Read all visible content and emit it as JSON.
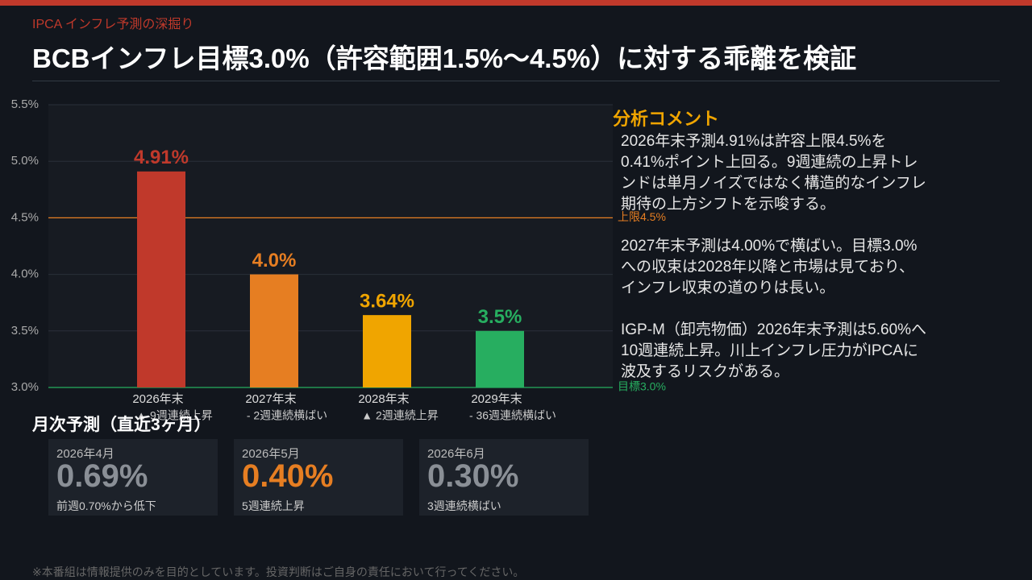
{
  "header": {
    "kicker": "IPCA インフレ予測の深掘り",
    "title": "BCBインフレ目標3.0%（許容範囲1.5%〜4.5%）に対する乖離を検証"
  },
  "chart_data": {
    "type": "bar",
    "categories": [
      "2026年末",
      "2027年末",
      "2028年末",
      "2029年末"
    ],
    "category_notes": [
      "▲ 9週連続上昇",
      "- 2週連続横ばい",
      "▲ 2週連続上昇",
      "- 36週連続横ばい"
    ],
    "values": [
      4.91,
      4.0,
      3.64,
      3.5
    ],
    "value_labels": [
      "4.91%",
      "4.0%",
      "3.64%",
      "3.5%"
    ],
    "colors": [
      "#c0392b",
      "#e67e22",
      "#f0a500",
      "#27ae60"
    ],
    "ylim": [
      3.0,
      5.5
    ],
    "yticks": [
      {
        "value": 3.0,
        "label": "3.0%"
      },
      {
        "value": 3.5,
        "label": "3.5%"
      },
      {
        "value": 4.0,
        "label": "4.0%"
      },
      {
        "value": 4.5,
        "label": "4.5%"
      },
      {
        "value": 5.0,
        "label": "5.0%"
      },
      {
        "value": 5.5,
        "label": "5.5%"
      }
    ],
    "grid": true,
    "reference_lines": [
      {
        "value": 4.5,
        "label": "上限4.5%",
        "color": "#e67e22"
      },
      {
        "value": 3.0,
        "label": "目標3.0%",
        "color": "#27ae60"
      }
    ]
  },
  "comments": {
    "heading": "分析コメント",
    "paragraphs": [
      "2026年末予測4.91%は許容上限4.5%を0.41%ポイント上回る。9週連続の上昇トレンドは単月ノイズではなく構造的なインフレ期待の上方シフトを示唆する。",
      "2027年末予測は4.00%で横ばい。目標3.0%への収束は2028年以降と市場は見ており、インフレ収束の道のりは長い。",
      "IGP-M（卸売物価）2026年末予測は5.60%へ10週連続上昇。川上インフレ圧力がIPCAに波及するリスクがある。"
    ]
  },
  "monthly": {
    "heading": "月次予測（直近3ヶ月）",
    "cards": [
      {
        "month": "2026年4月",
        "value": "0.69%",
        "note": "前週0.70%から低下"
      },
      {
        "month": "2026年5月",
        "value": "0.40%",
        "note": "5週連続上昇"
      },
      {
        "month": "2026年6月",
        "value": "0.30%",
        "note": "3週連続横ばい"
      }
    ]
  },
  "footer": "※本番組は情報提供のみを目的としています。投資判断はご自身の責任において行ってください。"
}
